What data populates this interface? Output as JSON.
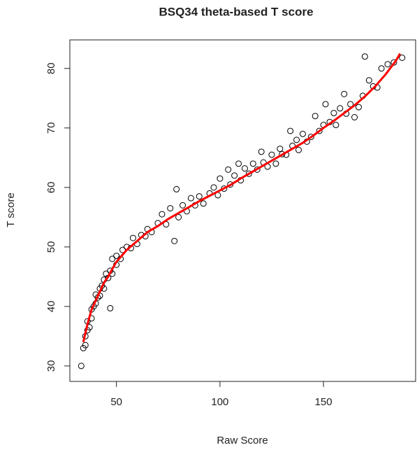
{
  "chart_data": {
    "type": "scatter",
    "title": "BSQ34 theta-based T score",
    "x_label": "Raw Score",
    "y_label": "T score",
    "xlim": [
      27.5,
      194.5
    ],
    "ylim": [
      27.4,
      84.8
    ],
    "xticks": [
      50,
      100,
      150
    ],
    "yticks": [
      30,
      40,
      50,
      60,
      70,
      80
    ],
    "point_color": "#000000",
    "x": [
      33,
      34,
      35,
      35,
      36,
      36,
      37,
      38,
      38,
      39,
      40,
      40,
      41,
      42,
      42,
      43,
      44,
      44,
      45,
      46,
      47,
      47,
      48,
      48,
      50,
      50,
      52,
      53,
      55,
      57,
      58,
      60,
      62,
      64,
      65,
      67,
      70,
      72,
      74,
      76,
      78,
      79,
      80,
      82,
      84,
      86,
      88,
      90,
      92,
      95,
      97,
      99,
      100,
      102,
      104,
      105,
      107,
      109,
      110,
      112,
      114,
      116,
      118,
      120,
      121,
      123,
      125,
      127,
      129,
      130,
      132,
      134,
      135,
      137,
      138,
      140,
      142,
      144,
      146,
      148,
      150,
      151,
      153,
      155,
      156,
      158,
      160,
      161,
      163,
      165,
      167,
      169,
      170,
      172,
      174,
      176,
      178,
      181,
      184,
      188
    ],
    "y": [
      30,
      33,
      33.5,
      35,
      36,
      37.5,
      36.5,
      38,
      39.5,
      40,
      40.5,
      42,
      41.5,
      43,
      41.8,
      43.5,
      44.5,
      43,
      45.5,
      44.8,
      39.7,
      46,
      45.5,
      48,
      47,
      48.5,
      48,
      49.5,
      50,
      49.8,
      51.5,
      50.5,
      52,
      51.8,
      53,
      52.5,
      54,
      55.5,
      53.8,
      56.5,
      51,
      59.7,
      55,
      57,
      56,
      58.2,
      57,
      58.5,
      57.3,
      59,
      60,
      58.7,
      61.5,
      59.8,
      63,
      60.5,
      62,
      64,
      61.2,
      63.2,
      62.3,
      64,
      63,
      66,
      64.2,
      63.5,
      65.5,
      64,
      66.5,
      65.6,
      65.5,
      69.5,
      67,
      68,
      66.3,
      69,
      67.7,
      68.5,
      72,
      69.5,
      70.5,
      74,
      71,
      72.5,
      70.5,
      73.3,
      75.7,
      72.4,
      74,
      71.8,
      73.5,
      75.4,
      82,
      78,
      77,
      76.8,
      80,
      80.7,
      81,
      81.8
    ],
    "fit_line": {
      "color": "#ff0000",
      "x": [
        34,
        36,
        38,
        40,
        42,
        44,
        46,
        48,
        50,
        55,
        60,
        65,
        70,
        75,
        80,
        85,
        90,
        95,
        100,
        105,
        110,
        115,
        120,
        125,
        130,
        135,
        140,
        145,
        150,
        155,
        160,
        165,
        170,
        175,
        180,
        185,
        187
      ],
      "y": [
        34,
        37,
        39.5,
        41,
        42.5,
        44,
        45,
        46.3,
        47.5,
        49.5,
        51,
        52.5,
        53.5,
        54.7,
        55.7,
        56.7,
        57.7,
        58.6,
        59.5,
        60.4,
        61.5,
        62.5,
        63.5,
        64.5,
        65.5,
        66.5,
        67.5,
        68.7,
        70,
        71.2,
        72.5,
        73.8,
        75.3,
        77,
        79,
        81.3,
        82.5
      ]
    }
  }
}
